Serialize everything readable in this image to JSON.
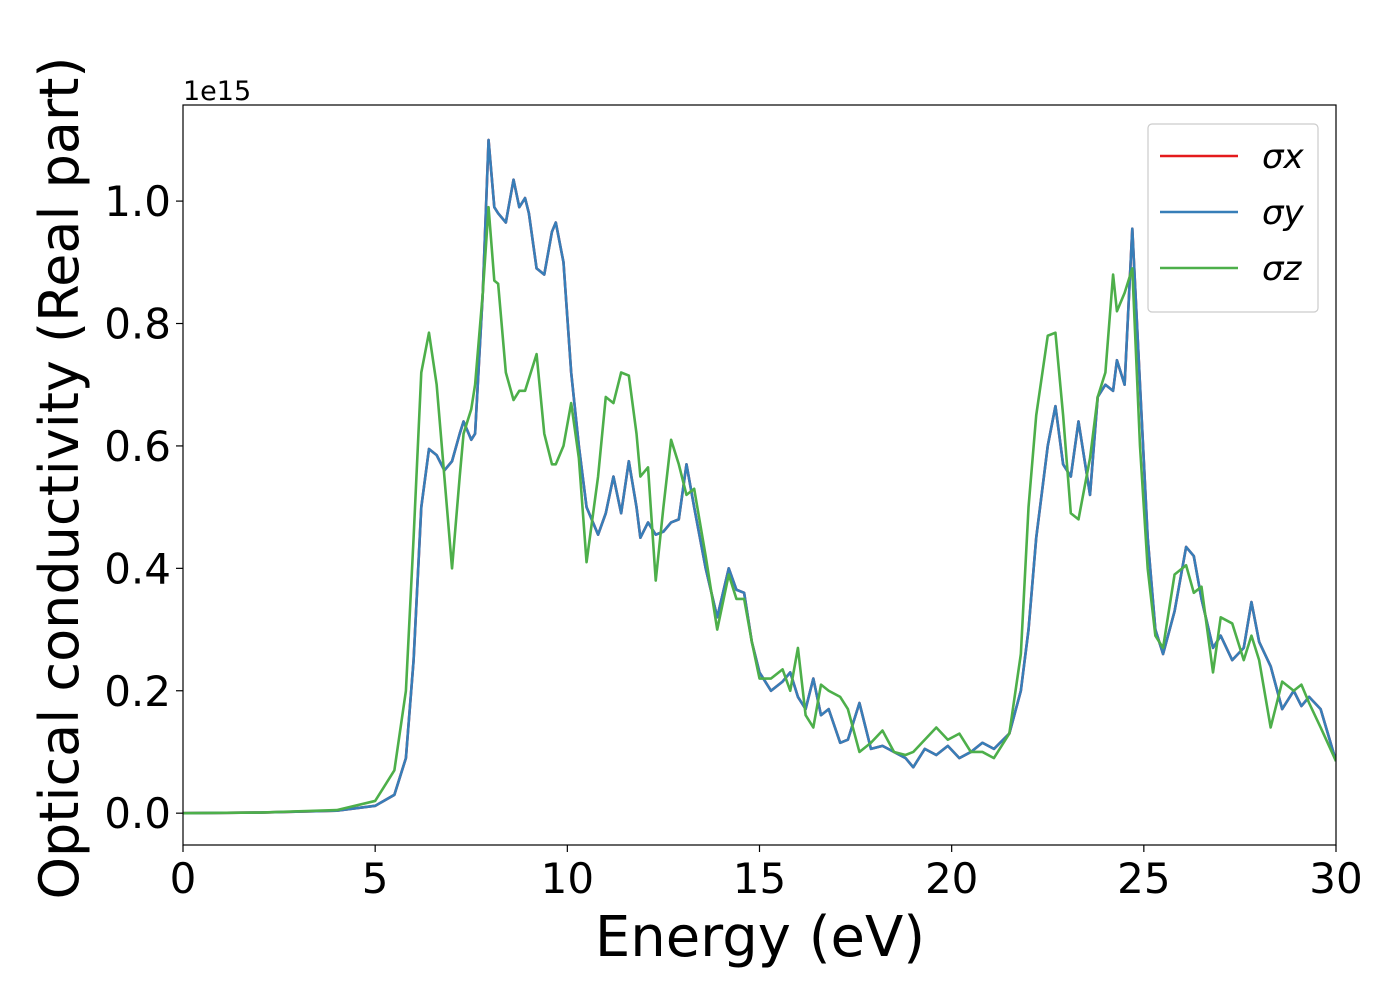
{
  "chart_data": {
    "type": "line",
    "xlabel": "Energy (eV)",
    "ylabel": "Optical conductivity (Real part)",
    "offset_label": "1e15",
    "legend": "upper right",
    "xlim": [
      0,
      30
    ],
    "ylim": [
      -0.052,
      1.157
    ],
    "xticks": [
      0,
      5,
      10,
      15,
      20,
      25,
      30
    ],
    "yticks": [
      {
        "value": 0,
        "label": "0.0"
      },
      0.2,
      0.4,
      0.6,
      0.8,
      {
        "value": 1,
        "label": "1.0"
      }
    ],
    "x": [
      0,
      2,
      4,
      5,
      5.5,
      5.8,
      6.0,
      6.2,
      6.4,
      6.6,
      6.8,
      7.0,
      7.2,
      7.3,
      7.5,
      7.6,
      7.8,
      7.95,
      8.1,
      8.2,
      8.4,
      8.6,
      8.75,
      8.9,
      9.0,
      9.2,
      9.4,
      9.6,
      9.7,
      9.9,
      10.1,
      10.3,
      10.5,
      10.8,
      11.0,
      11.2,
      11.4,
      11.6,
      11.8,
      11.9,
      12.1,
      12.3,
      12.5,
      12.7,
      12.9,
      13.1,
      13.3,
      13.6,
      13.9,
      14.2,
      14.4,
      14.6,
      14.8,
      15.0,
      15.3,
      15.6,
      15.8,
      16.0,
      16.2,
      16.4,
      16.6,
      16.8,
      17.1,
      17.3,
      17.6,
      17.9,
      18.2,
      18.5,
      18.8,
      19.0,
      19.3,
      19.6,
      19.9,
      20.2,
      20.5,
      20.8,
      21.1,
      21.5,
      21.8,
      22.0,
      22.2,
      22.5,
      22.7,
      22.9,
      23.1,
      23.3,
      23.6,
      23.8,
      24.0,
      24.2,
      24.3,
      24.5,
      24.7,
      24.9,
      25.1,
      25.3,
      25.5,
      25.8,
      26.1,
      26.3,
      26.5,
      26.8,
      27.0,
      27.3,
      27.6,
      27.8,
      28.0,
      28.3,
      28.6,
      28.9,
      29.1,
      29.3,
      29.6,
      30
    ],
    "series": [
      {
        "name": "σx",
        "color": "#e41a1c",
        "values": [
          0,
          0.001,
          0.004,
          0.012,
          0.03,
          0.09,
          0.25,
          0.5,
          0.595,
          0.585,
          0.56,
          0.575,
          0.62,
          0.64,
          0.61,
          0.62,
          0.85,
          1.1,
          0.99,
          0.98,
          0.965,
          1.035,
          0.99,
          1.005,
          0.98,
          0.89,
          0.88,
          0.95,
          0.965,
          0.9,
          0.72,
          0.6,
          0.5,
          0.455,
          0.49,
          0.55,
          0.49,
          0.575,
          0.5,
          0.45,
          0.475,
          0.455,
          0.46,
          0.475,
          0.48,
          0.57,
          0.5,
          0.4,
          0.32,
          0.4,
          0.365,
          0.36,
          0.28,
          0.23,
          0.2,
          0.215,
          0.23,
          0.19,
          0.17,
          0.22,
          0.16,
          0.17,
          0.115,
          0.12,
          0.18,
          0.105,
          0.11,
          0.1,
          0.09,
          0.075,
          0.105,
          0.095,
          0.11,
          0.09,
          0.1,
          0.115,
          0.105,
          0.13,
          0.2,
          0.3,
          0.45,
          0.6,
          0.665,
          0.57,
          0.55,
          0.64,
          0.52,
          0.68,
          0.7,
          0.69,
          0.74,
          0.7,
          0.955,
          0.7,
          0.45,
          0.3,
          0.26,
          0.33,
          0.435,
          0.42,
          0.35,
          0.27,
          0.29,
          0.25,
          0.27,
          0.345,
          0.28,
          0.24,
          0.17,
          0.2,
          0.175,
          0.19,
          0.17,
          0.085
        ]
      },
      {
        "name": "σy",
        "color": "#377eb8",
        "values": [
          0,
          0.001,
          0.004,
          0.012,
          0.03,
          0.09,
          0.25,
          0.5,
          0.595,
          0.585,
          0.56,
          0.575,
          0.62,
          0.64,
          0.61,
          0.62,
          0.85,
          1.1,
          0.99,
          0.98,
          0.965,
          1.035,
          0.99,
          1.005,
          0.98,
          0.89,
          0.88,
          0.95,
          0.965,
          0.9,
          0.72,
          0.6,
          0.5,
          0.455,
          0.49,
          0.55,
          0.49,
          0.575,
          0.5,
          0.45,
          0.475,
          0.455,
          0.46,
          0.475,
          0.48,
          0.57,
          0.5,
          0.4,
          0.32,
          0.4,
          0.365,
          0.36,
          0.28,
          0.23,
          0.2,
          0.215,
          0.23,
          0.19,
          0.17,
          0.22,
          0.16,
          0.17,
          0.115,
          0.12,
          0.18,
          0.105,
          0.11,
          0.1,
          0.09,
          0.075,
          0.105,
          0.095,
          0.11,
          0.09,
          0.1,
          0.115,
          0.105,
          0.13,
          0.2,
          0.3,
          0.45,
          0.6,
          0.665,
          0.57,
          0.55,
          0.64,
          0.52,
          0.68,
          0.7,
          0.69,
          0.74,
          0.7,
          0.955,
          0.7,
          0.45,
          0.3,
          0.26,
          0.33,
          0.435,
          0.42,
          0.35,
          0.27,
          0.29,
          0.25,
          0.27,
          0.345,
          0.28,
          0.24,
          0.17,
          0.2,
          0.175,
          0.19,
          0.17,
          0.085
        ]
      },
      {
        "name": "σz",
        "color": "#4daf4a",
        "values": [
          0,
          0.001,
          0.005,
          0.02,
          0.07,
          0.2,
          0.45,
          0.72,
          0.785,
          0.7,
          0.55,
          0.4,
          0.55,
          0.62,
          0.66,
          0.7,
          0.85,
          0.99,
          0.87,
          0.865,
          0.72,
          0.675,
          0.69,
          0.69,
          0.71,
          0.75,
          0.62,
          0.57,
          0.57,
          0.6,
          0.67,
          0.58,
          0.41,
          0.55,
          0.68,
          0.67,
          0.72,
          0.715,
          0.62,
          0.55,
          0.565,
          0.38,
          0.5,
          0.61,
          0.57,
          0.52,
          0.53,
          0.42,
          0.3,
          0.39,
          0.35,
          0.35,
          0.28,
          0.22,
          0.22,
          0.235,
          0.2,
          0.27,
          0.16,
          0.14,
          0.21,
          0.2,
          0.19,
          0.17,
          0.1,
          0.115,
          0.135,
          0.1,
          0.095,
          0.1,
          0.12,
          0.14,
          0.12,
          0.13,
          0.1,
          0.1,
          0.09,
          0.13,
          0.26,
          0.5,
          0.65,
          0.78,
          0.785,
          0.65,
          0.49,
          0.48,
          0.58,
          0.68,
          0.72,
          0.88,
          0.82,
          0.85,
          0.89,
          0.6,
          0.4,
          0.29,
          0.27,
          0.39,
          0.405,
          0.36,
          0.37,
          0.23,
          0.32,
          0.31,
          0.25,
          0.29,
          0.25,
          0.14,
          0.215,
          0.2,
          0.21,
          0.18,
          0.14,
          0.085
        ]
      }
    ]
  }
}
